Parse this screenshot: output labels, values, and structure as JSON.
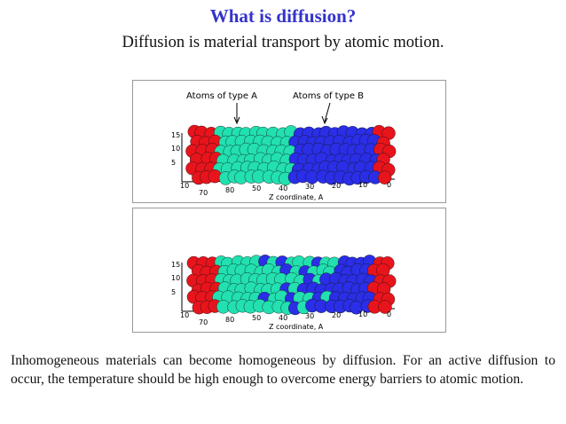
{
  "header": {
    "title": "What is diffusion?",
    "subtitle": "Diffusion is material transport by atomic motion."
  },
  "figures": [
    {
      "labels": [
        "Atoms of type A",
        "Atoms of type B"
      ],
      "y_axis_ticks": [
        "15",
        "10",
        "5"
      ],
      "x_axis_ticks": [
        "10",
        "70",
        "80",
        "50",
        "40",
        "30",
        "20",
        "10",
        "0"
      ],
      "axis_label": "Z coordinate, A"
    },
    {
      "y_axis_ticks": [
        "15",
        "10",
        "5"
      ],
      "x_axis_ticks": [
        "10",
        "70",
        "80",
        "50",
        "40",
        "30",
        "20",
        "10",
        "0"
      ],
      "axis_label": "Z coordinate, A"
    }
  ],
  "body": {
    "paragraph": "Inhomogeneous materials can become homogeneous by diffusion. For an active diffusion to occur, the temperature should be high enough to overcome energy barriers to atomic motion."
  }
}
